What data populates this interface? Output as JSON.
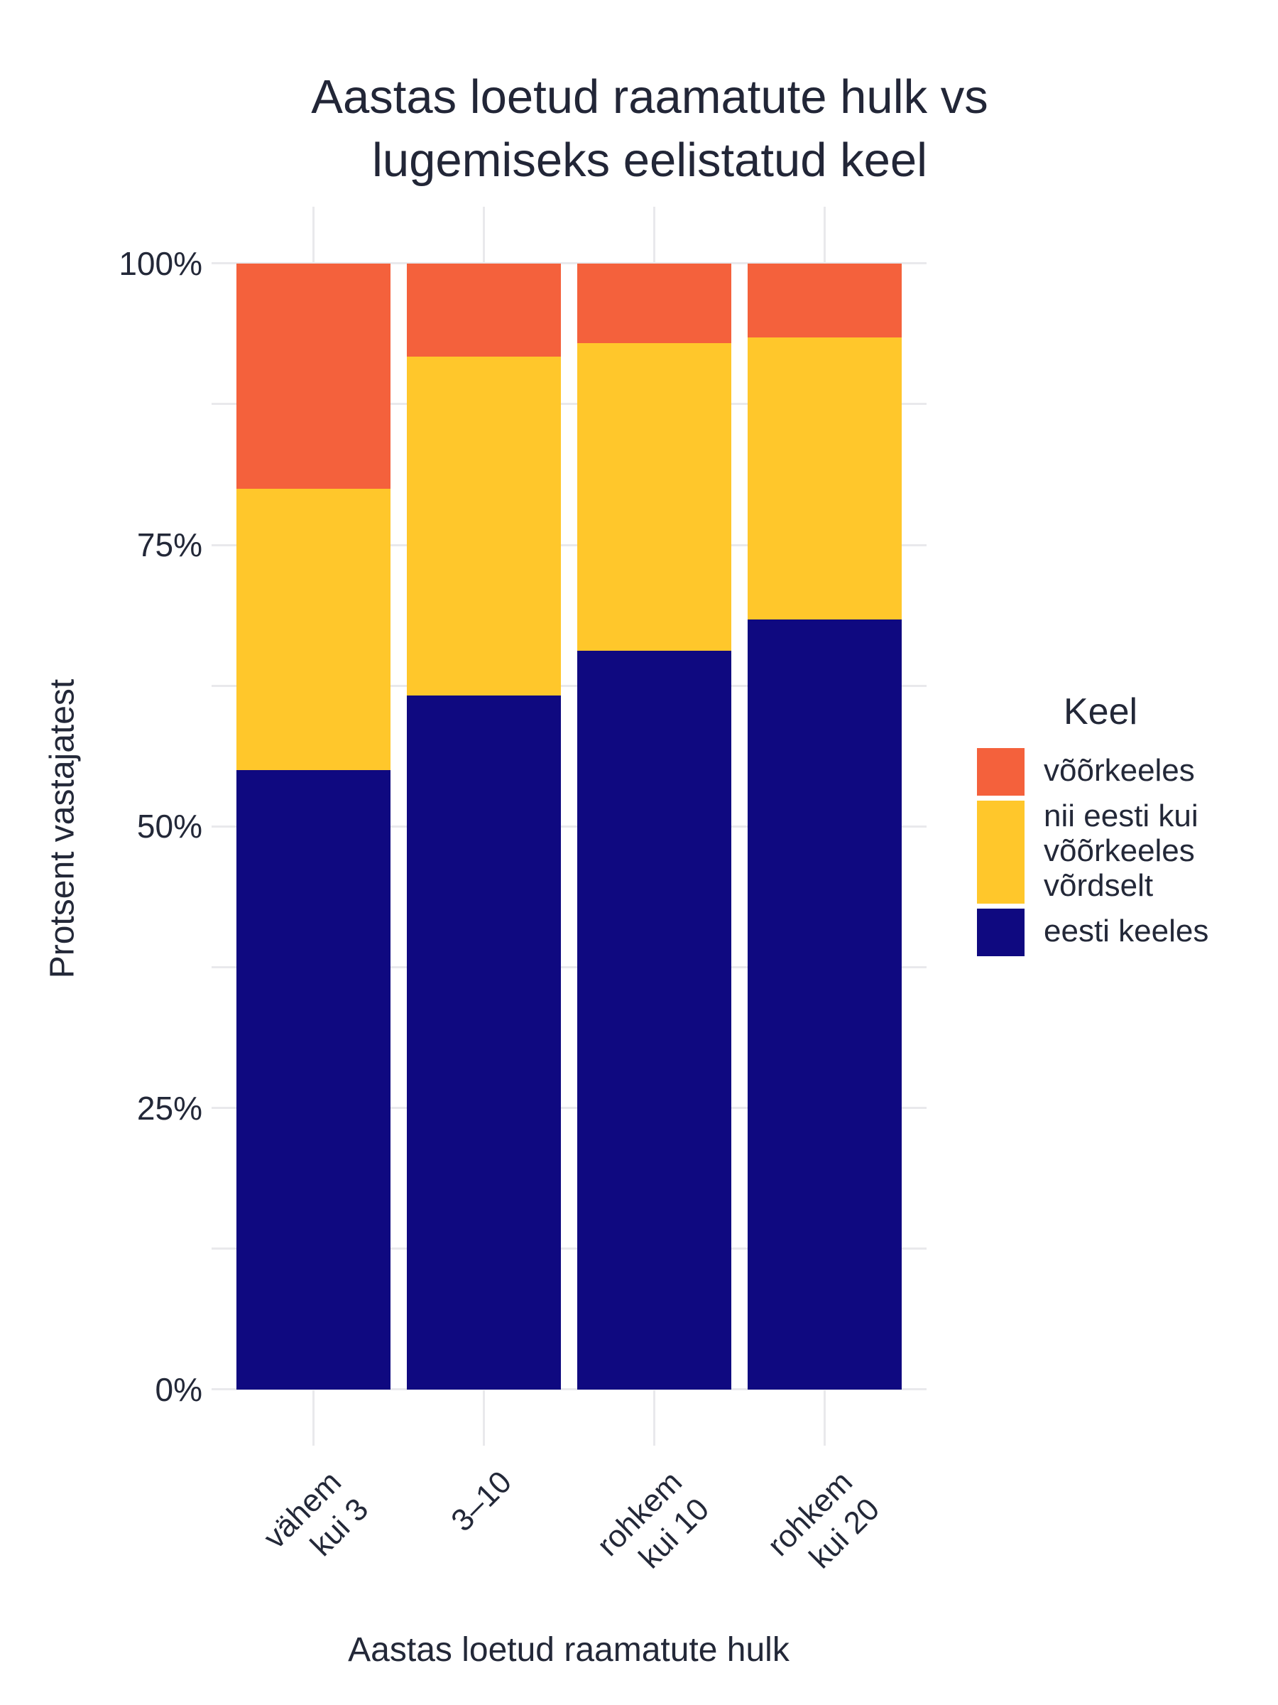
{
  "title": {
    "line1": "Aastas loetud raamatute hulk vs",
    "line2": "lugemiseks eelistatud keel"
  },
  "y_axis": {
    "title": "Protsent vastajatest",
    "tick_labels": [
      "100%",
      "75%",
      "50%",
      "25%",
      "0%"
    ],
    "tick_values": [
      100,
      75,
      50,
      25,
      0
    ]
  },
  "x_axis": {
    "title": "Aastas loetud raamatute hulk",
    "tick_labels": [
      "vähem\nkui 3",
      "3–10",
      "rohkem\nkui 10",
      "rohkem\nkui 20"
    ]
  },
  "legend": {
    "title": "Keel",
    "items": [
      {
        "label": "võõrkeeles",
        "color": "#F4613C"
      },
      {
        "label": "nii eesti kui\nvõõrkeeles\nvõrdselt",
        "color": "#FFC72B"
      },
      {
        "label": "eesti keeles",
        "color": "#0F0980"
      }
    ]
  },
  "colors": {
    "orange": "#F4613C",
    "yellow": "#FFC72B",
    "navy": "#0F0980",
    "text": "#232838",
    "grid": "#E9E9EC",
    "background": "#FFFFFF"
  },
  "chart_data": {
    "type": "bar",
    "subtype": "stacked-100-percent",
    "title": "Aastas loetud raamatute hulk vs lugemiseks eelistatud keel",
    "xlabel": "Aastas loetud raamatute hulk",
    "ylabel": "Protsent vastajatest",
    "ylim": [
      0,
      100
    ],
    "grid": "minor-horizontal-every-12.5-percent",
    "legend_position": "right",
    "categories": [
      "vähem kui 3",
      "3–10",
      "rohkem kui 10",
      "rohkem kui 20"
    ],
    "series": [
      {
        "name": "eesti keeles",
        "color": "#0F0980",
        "values": [
          55.0,
          61.6,
          65.6,
          68.4
        ]
      },
      {
        "name": "nii eesti kui võõrkeeles võrdselt",
        "color": "#FFC72B",
        "values": [
          25.0,
          30.1,
          27.3,
          25.0
        ]
      },
      {
        "name": "võõrkeeles",
        "color": "#F4613C",
        "values": [
          20.0,
          8.3,
          7.1,
          6.6
        ]
      }
    ]
  }
}
